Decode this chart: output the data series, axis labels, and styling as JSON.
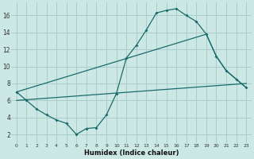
{
  "bg_color": "#cce8e4",
  "grid_color": "#aaccca",
  "line_color": "#1a6b6b",
  "marker_color": "#1a6b6b",
  "xlabel": "Humidex (Indice chaleur)",
  "xlim": [
    -0.5,
    23.5
  ],
  "ylim": [
    1,
    17.5
  ],
  "xticks": [
    0,
    1,
    2,
    3,
    4,
    5,
    6,
    7,
    8,
    9,
    10,
    11,
    12,
    13,
    14,
    15,
    16,
    17,
    18,
    19,
    20,
    21,
    22,
    23
  ],
  "yticks": [
    2,
    4,
    6,
    8,
    10,
    12,
    14,
    16
  ],
  "series1": [
    [
      0,
      7
    ],
    [
      1,
      6
    ],
    [
      2,
      5
    ],
    [
      3,
      4.3
    ],
    [
      4,
      3.7
    ],
    [
      5,
      3.3
    ],
    [
      6,
      2
    ],
    [
      7,
      2.7
    ],
    [
      8,
      2.8
    ],
    [
      9,
      4.3
    ],
    [
      10,
      6.8
    ],
    [
      11,
      11
    ],
    [
      12,
      12.5
    ],
    [
      13,
      14.3
    ],
    [
      14,
      16.3
    ],
    [
      15,
      16.6
    ],
    [
      16,
      16.8
    ],
    [
      17,
      16.0
    ],
    [
      18,
      15.3
    ],
    [
      19,
      13.8
    ],
    [
      20,
      11.2
    ],
    [
      21,
      9.5
    ],
    [
      22,
      8.5
    ],
    [
      23,
      7.5
    ]
  ],
  "series2": [
    [
      0,
      7.0
    ],
    [
      19,
      13.8
    ],
    [
      20,
      11.2
    ],
    [
      21,
      9.5
    ],
    [
      23,
      7.5
    ]
  ],
  "series3": [
    [
      0,
      6.0
    ],
    [
      23,
      8.0
    ]
  ]
}
